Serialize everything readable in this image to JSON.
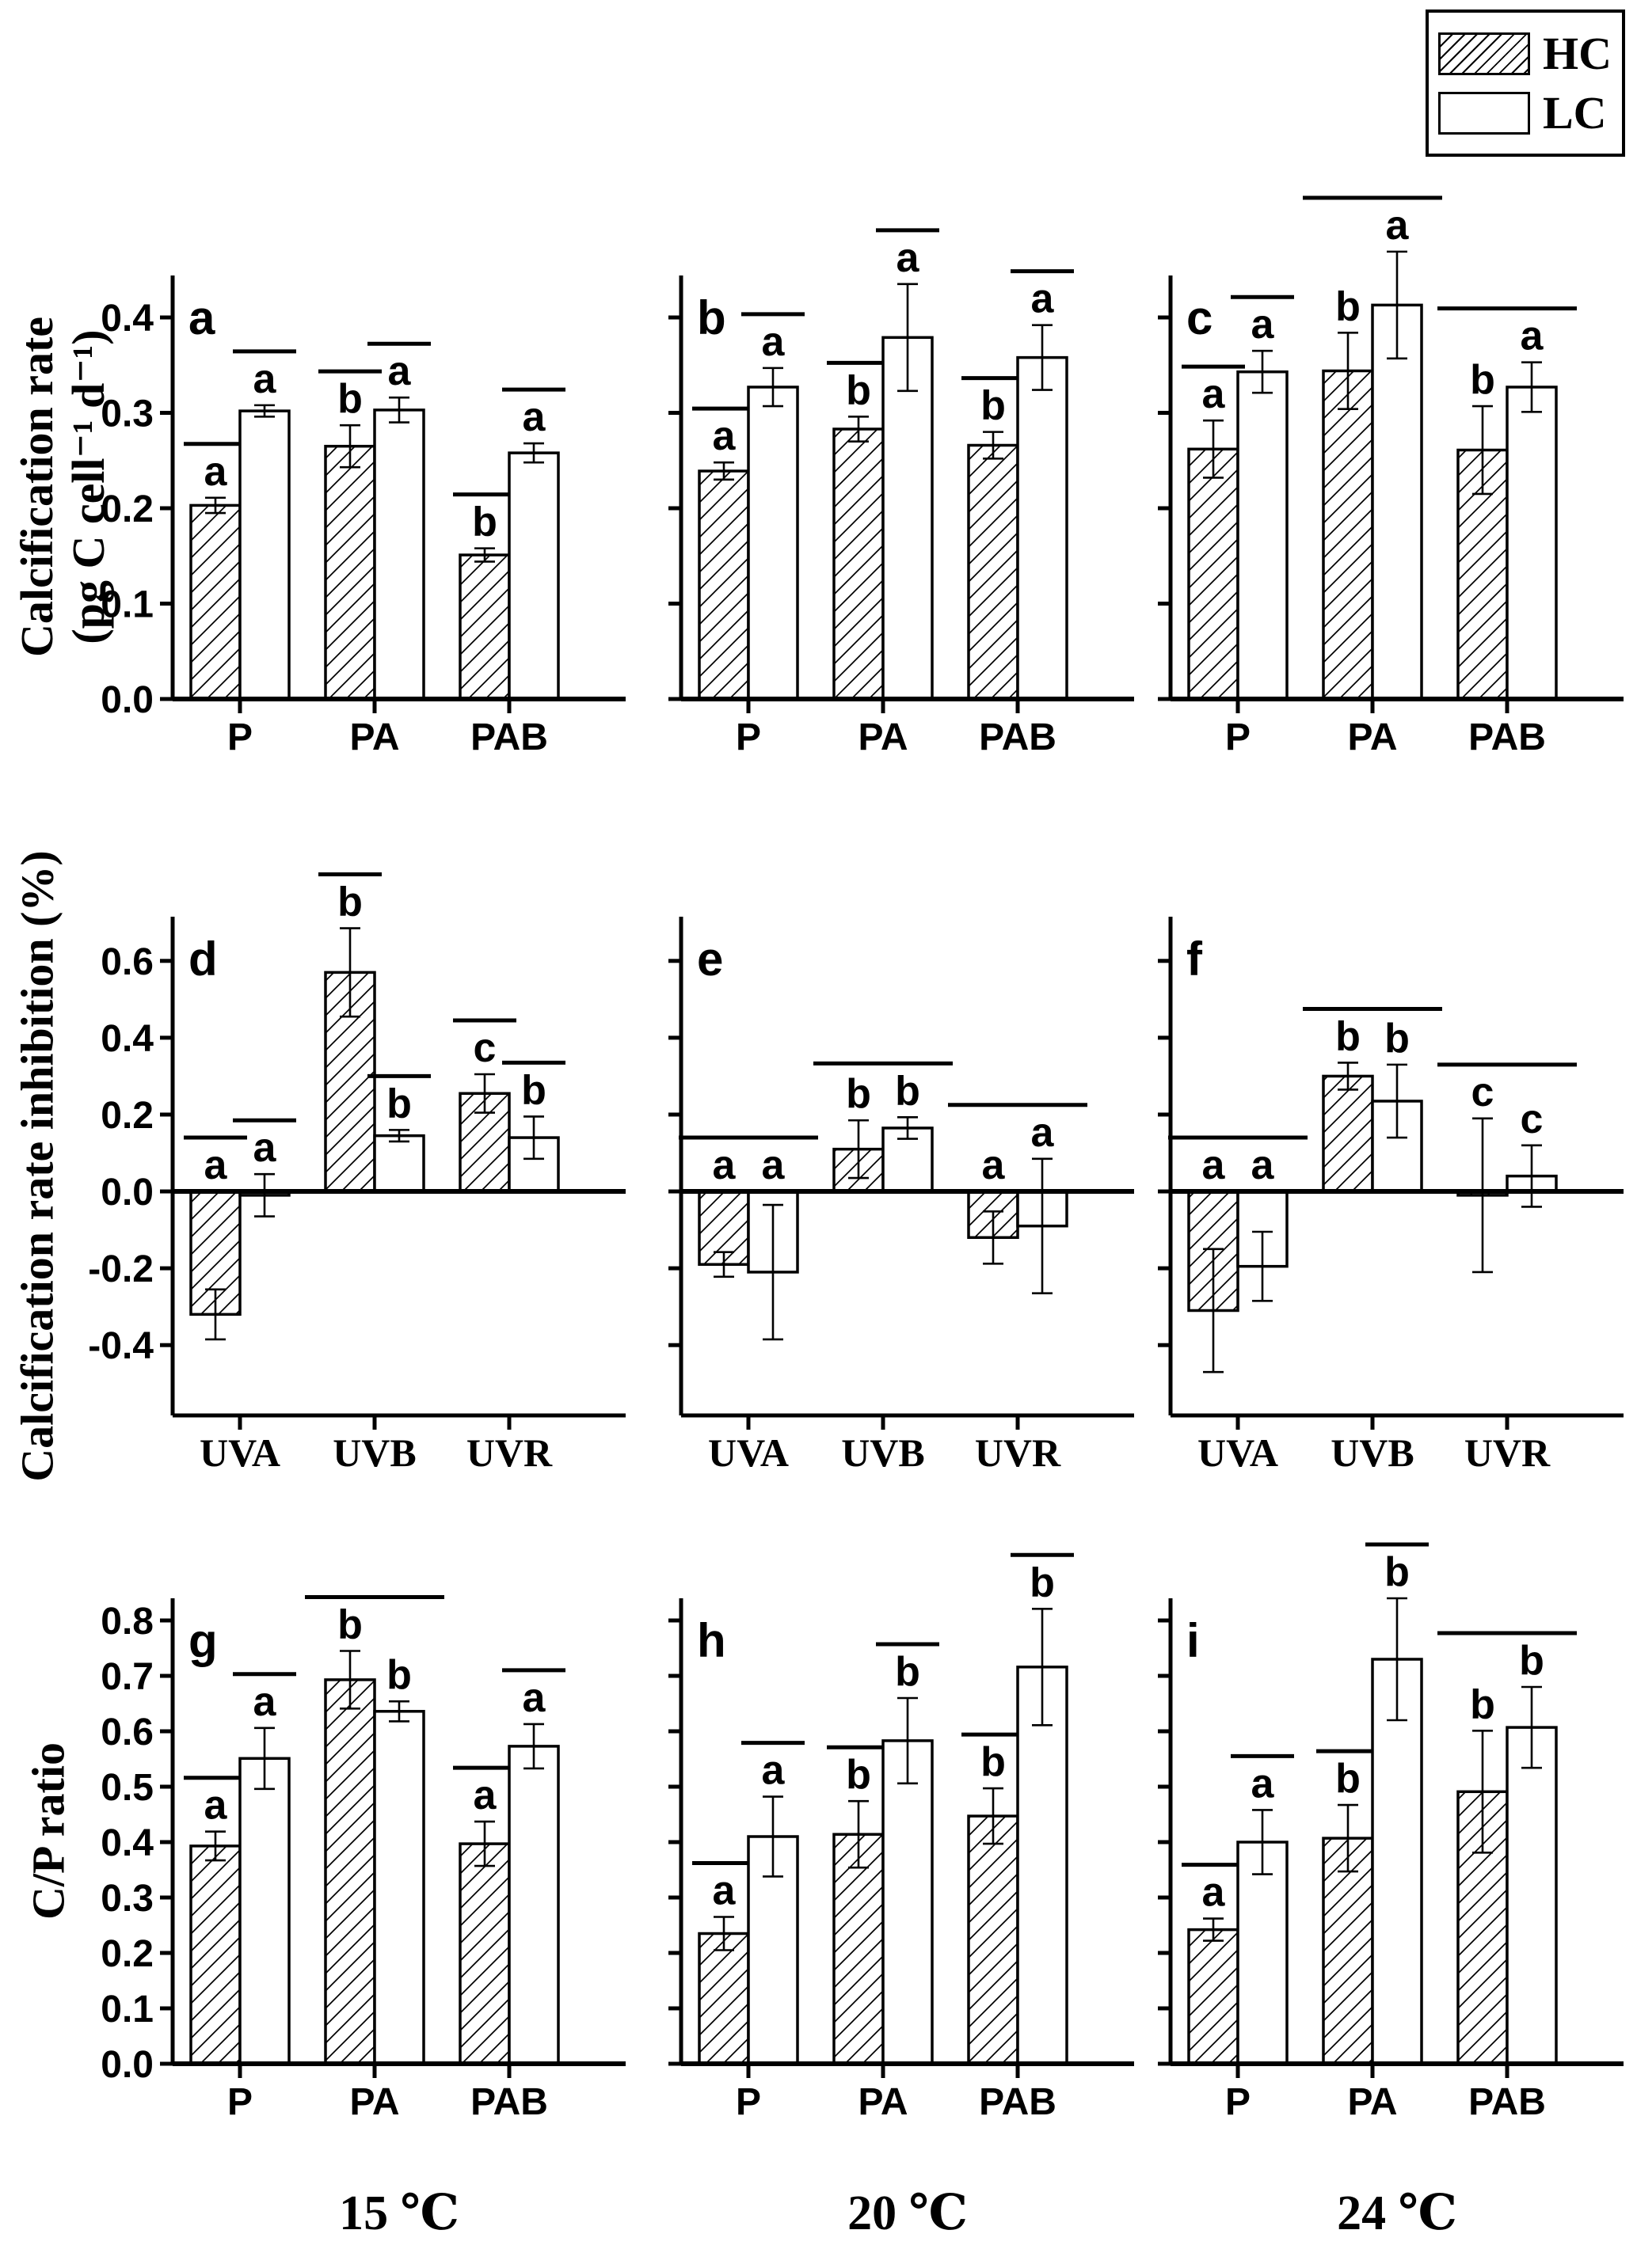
{
  "chart_data": {
    "type": "bar",
    "title": "",
    "legend": [
      {
        "label": "HC",
        "fill": "hatched"
      },
      {
        "label": "LC",
        "fill": "open"
      }
    ],
    "columns": [
      {
        "label": "15 ℃"
      },
      {
        "label": "20 ℃"
      },
      {
        "label": "24 ℃"
      }
    ],
    "rows": [
      {
        "ylabel": "Calcification rate",
        "ylabel2": "(pg C cell⁻¹ d⁻¹)",
        "ylim": [
          0,
          0.444
        ],
        "ticks": [
          0.0,
          0.1,
          0.2,
          0.3,
          0.4
        ],
        "tick_labels": [
          "0.0",
          "0.1",
          "0.2",
          "0.3",
          "0.4"
        ],
        "categories_font": "sans"
      },
      {
        "ylabel": "Calcification rate inhibition (%)",
        "ylabel2": "",
        "ylim": [
          -0.583,
          0.715
        ],
        "ticks": [
          0.6,
          0.4,
          0.2,
          0.0,
          -0.2,
          -0.4
        ],
        "tick_labels": [
          "0.6",
          "0.4",
          "0.2",
          "0.0",
          "-0.2",
          "-0.4"
        ],
        "categories_font": "serif"
      },
      {
        "ylabel": "C/P ratio",
        "ylabel2": "",
        "ylim": [
          0,
          0.84
        ],
        "ticks": [
          0.0,
          0.1,
          0.2,
          0.3,
          0.4,
          0.5,
          0.6,
          0.7,
          0.8
        ],
        "tick_labels": [
          "0.0",
          "0.1",
          "0.2",
          "0.3",
          "0.4",
          "0.5",
          "0.6",
          "0.7",
          "0.8"
        ],
        "categories_font": "sans"
      }
    ],
    "panels": [
      {
        "id": "a",
        "row": 0,
        "col": 0,
        "panel_label": "a",
        "temperature": "15 ℃",
        "categories": [
          "P",
          "PA",
          "PAB"
        ],
        "series": [
          {
            "name": "HC",
            "values": [
              0.203,
              0.265,
              0.151
            ],
            "errors": [
              0.008,
              0.022,
              0.007
            ],
            "letters": [
              "a",
              "b",
              "b"
            ],
            "letter_lines": [
              true,
              true,
              true
            ]
          },
          {
            "name": "LC",
            "values": [
              0.302,
              0.303,
              0.258
            ],
            "errors": [
              0.006,
              0.013,
              0.01
            ],
            "letters": [
              "a",
              "a",
              "a"
            ],
            "letter_lines": [
              true,
              true,
              true
            ]
          }
        ],
        "group_lines": [
          false,
          false,
          false
        ]
      },
      {
        "id": "b",
        "row": 0,
        "col": 1,
        "panel_label": "b",
        "temperature": "20 ℃",
        "categories": [
          "P",
          "PA",
          "PAB"
        ],
        "series": [
          {
            "name": "HC",
            "values": [
              0.239,
              0.283,
              0.266
            ],
            "errors": [
              0.009,
              0.013,
              0.014
            ],
            "letters": [
              "a",
              "b",
              "b"
            ],
            "letter_lines": [
              true,
              true,
              true
            ]
          },
          {
            "name": "LC",
            "values": [
              0.327,
              0.379,
              0.358
            ],
            "errors": [
              0.02,
              0.056,
              0.034
            ],
            "letters": [
              "a",
              "a",
              "a"
            ],
            "letter_lines": [
              true,
              true,
              true
            ]
          }
        ],
        "group_lines": [
          false,
          false,
          false
        ]
      },
      {
        "id": "c",
        "row": 0,
        "col": 2,
        "panel_label": "c",
        "temperature": "24 ℃",
        "categories": [
          "P",
          "PA",
          "PAB"
        ],
        "series": [
          {
            "name": "HC",
            "values": [
              0.262,
              0.344,
              0.261
            ],
            "errors": [
              0.03,
              0.04,
              0.046
            ],
            "letters": [
              "a",
              "b",
              "b"
            ],
            "letter_lines": [
              true,
              false,
              false
            ]
          },
          {
            "name": "LC",
            "values": [
              0.343,
              0.413,
              0.327
            ],
            "errors": [
              0.022,
              0.056,
              0.026
            ],
            "letters": [
              "a",
              "a",
              "a"
            ],
            "letter_lines": [
              true,
              false,
              false
            ]
          }
        ],
        "group_lines": [
          false,
          true,
          true
        ]
      },
      {
        "id": "d",
        "row": 1,
        "col": 0,
        "panel_label": "d",
        "temperature": "15 ℃",
        "categories": [
          "UVA",
          "UVB",
          "UVR"
        ],
        "series": [
          {
            "name": "HC",
            "values": [
              -0.32,
              0.57,
              0.255
            ],
            "errors": [
              0.065,
              0.115,
              0.05
            ],
            "letters": [
              "a",
              "b",
              "c"
            ],
            "letter_lines": [
              true,
              true,
              true
            ]
          },
          {
            "name": "LC",
            "values": [
              -0.01,
              0.145,
              0.14
            ],
            "errors": [
              0.055,
              0.015,
              0.055
            ],
            "letters": [
              "a",
              "b",
              "b"
            ],
            "letter_lines": [
              true,
              true,
              true
            ]
          }
        ],
        "group_lines": [
          false,
          false,
          false
        ]
      },
      {
        "id": "e",
        "row": 1,
        "col": 1,
        "panel_label": "e",
        "temperature": "20 ℃",
        "categories": [
          "UVA",
          "UVB",
          "UVR"
        ],
        "series": [
          {
            "name": "HC",
            "values": [
              -0.19,
              0.11,
              -0.12
            ],
            "errors": [
              0.032,
              0.075,
              0.068
            ],
            "letters": [
              "a",
              "b",
              "a"
            ],
            "letter_lines": [
              false,
              false,
              false
            ]
          },
          {
            "name": "LC",
            "values": [
              -0.21,
              0.165,
              -0.09
            ],
            "errors": [
              0.175,
              0.028,
              0.175
            ],
            "letters": [
              "a",
              "b",
              "a"
            ],
            "letter_lines": [
              false,
              false,
              false
            ]
          }
        ],
        "group_lines": [
          true,
          true,
          true
        ]
      },
      {
        "id": "f",
        "row": 1,
        "col": 2,
        "panel_label": "f",
        "temperature": "24 ℃",
        "categories": [
          "UVA",
          "UVB",
          "UVR"
        ],
        "series": [
          {
            "name": "HC",
            "values": [
              -0.31,
              0.3,
              -0.01
            ],
            "errors": [
              0.16,
              0.035,
              0.2
            ],
            "letters": [
              "a",
              "b",
              "c"
            ],
            "letter_lines": [
              false,
              false,
              false
            ]
          },
          {
            "name": "LC",
            "values": [
              -0.195,
              0.235,
              0.04
            ],
            "errors": [
              0.09,
              0.095,
              0.08
            ],
            "letters": [
              "a",
              "b",
              "c"
            ],
            "letter_lines": [
              false,
              false,
              false
            ]
          }
        ],
        "group_lines": [
          true,
          true,
          true
        ]
      },
      {
        "id": "g",
        "row": 2,
        "col": 0,
        "panel_label": "g",
        "temperature": "15 ℃",
        "categories": [
          "P",
          "PA",
          "PAB"
        ],
        "series": [
          {
            "name": "HC",
            "values": [
              0.393,
              0.693,
              0.397
            ],
            "errors": [
              0.026,
              0.052,
              0.04
            ],
            "letters": [
              "a",
              "b",
              "a"
            ],
            "letter_lines": [
              true,
              false,
              true
            ]
          },
          {
            "name": "LC",
            "values": [
              0.551,
              0.636,
              0.573
            ],
            "errors": [
              0.055,
              0.018,
              0.04
            ],
            "letters": [
              "a",
              "b",
              "a"
            ],
            "letter_lines": [
              true,
              false,
              true
            ]
          }
        ],
        "group_lines": [
          false,
          true,
          false
        ]
      },
      {
        "id": "h",
        "row": 2,
        "col": 1,
        "panel_label": "h",
        "temperature": "20 ℃",
        "categories": [
          "P",
          "PA",
          "PAB"
        ],
        "series": [
          {
            "name": "HC",
            "values": [
              0.235,
              0.414,
              0.447
            ],
            "errors": [
              0.03,
              0.06,
              0.05
            ],
            "letters": [
              "a",
              "b",
              "b"
            ],
            "letter_lines": [
              true,
              true,
              true
            ]
          },
          {
            "name": "LC",
            "values": [
              0.41,
              0.583,
              0.716
            ],
            "errors": [
              0.072,
              0.077,
              0.105
            ],
            "letters": [
              "a",
              "b",
              "b"
            ],
            "letter_lines": [
              true,
              true,
              true
            ]
          }
        ],
        "group_lines": [
          false,
          false,
          false
        ]
      },
      {
        "id": "i",
        "row": 2,
        "col": 2,
        "panel_label": "i",
        "temperature": "24 ℃",
        "categories": [
          "P",
          "PA",
          "PAB"
        ],
        "series": [
          {
            "name": "HC",
            "values": [
              0.242,
              0.407,
              0.491
            ],
            "errors": [
              0.02,
              0.06,
              0.11
            ],
            "letters": [
              "a",
              "b",
              "b"
            ],
            "letter_lines": [
              true,
              true,
              false
            ]
          },
          {
            "name": "LC",
            "values": [
              0.4,
              0.73,
              0.607
            ],
            "errors": [
              0.058,
              0.11,
              0.073
            ],
            "letters": [
              "a",
              "b",
              "b"
            ],
            "letter_lines": [
              true,
              true,
              false
            ]
          }
        ],
        "group_lines": [
          false,
          false,
          true
        ]
      }
    ]
  }
}
